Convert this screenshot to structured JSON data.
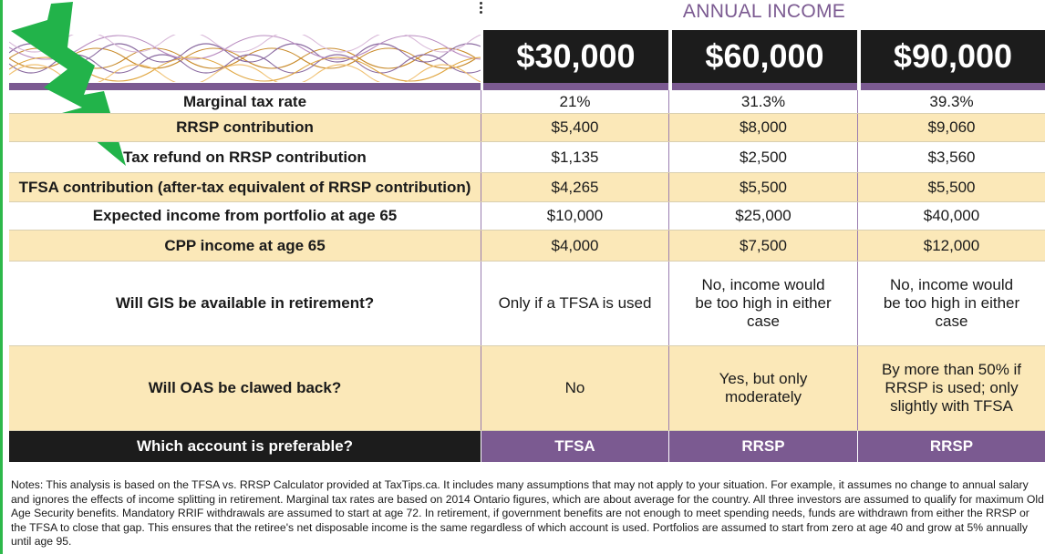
{
  "header": {
    "annual_income": "ANNUAL INCOME",
    "columns": [
      "$30,000",
      "$60,000",
      "$90,000"
    ]
  },
  "rows": [
    {
      "label": "Marginal tax rate",
      "values": [
        "21%",
        "31.3%",
        "39.3%"
      ]
    },
    {
      "label": "RRSP contribution",
      "values": [
        "$5,400",
        "$8,000",
        "$9,060"
      ]
    },
    {
      "label": "Tax refund on RRSP contribution",
      "values": [
        "$1,135",
        "$2,500",
        "$3,560"
      ]
    },
    {
      "label": "TFSA contribution (after-tax equivalent of RRSP contribution)",
      "values": [
        "$4,265",
        "$5,500",
        "$5,500"
      ]
    },
    {
      "label": "Expected income from portfolio at age 65",
      "values": [
        "$10,000",
        "$25,000",
        "$40,000"
      ]
    },
    {
      "label": "CPP income at age 65",
      "values": [
        "$4,000",
        "$7,500",
        "$12,000"
      ]
    },
    {
      "label": "Will GIS be available in retirement?",
      "values": [
        "Only if a TFSA is used",
        "No, income would be too high in either case",
        "No, income would be too high in either case"
      ]
    },
    {
      "label": "Will OAS be clawed back?",
      "values": [
        "No",
        "Yes, but only moderately",
        "By more than 50% if RRSP is used; only slightly with TFSA"
      ]
    },
    {
      "label": "Which account is preferable?",
      "values": [
        "TFSA",
        "RRSP",
        "RRSP"
      ]
    }
  ],
  "notes": "Notes: This analysis is based on the TFSA vs. RRSP Calculator provided at TaxTips.ca. It includes many assumptions that may not apply to your situation. For example, it assumes no change to annual salary and ignores the effects of income splitting in retirement. Marginal tax rates are based on 2014 Ontario figures, which are about average for the country. All three investors are assumed to qualify for maximum Old Age Security benefits. Mandatory RRIF withdrawals are assumed to start at age 72. In retirement, if government benefits are not enough to meet spending needs, funds are withdrawn from either the RRSP or the TFSA to close that gap. This ensures that the retiree's net disposable income is the same regardless of which account is used. Portfolios are assumed to start from zero at age 40 and grow at 5% annually until age 95.",
  "colors": {
    "purple": "#7b5a91",
    "black": "#1c1c1c",
    "cream": "#fbe8b8",
    "green": "#2db84a"
  }
}
